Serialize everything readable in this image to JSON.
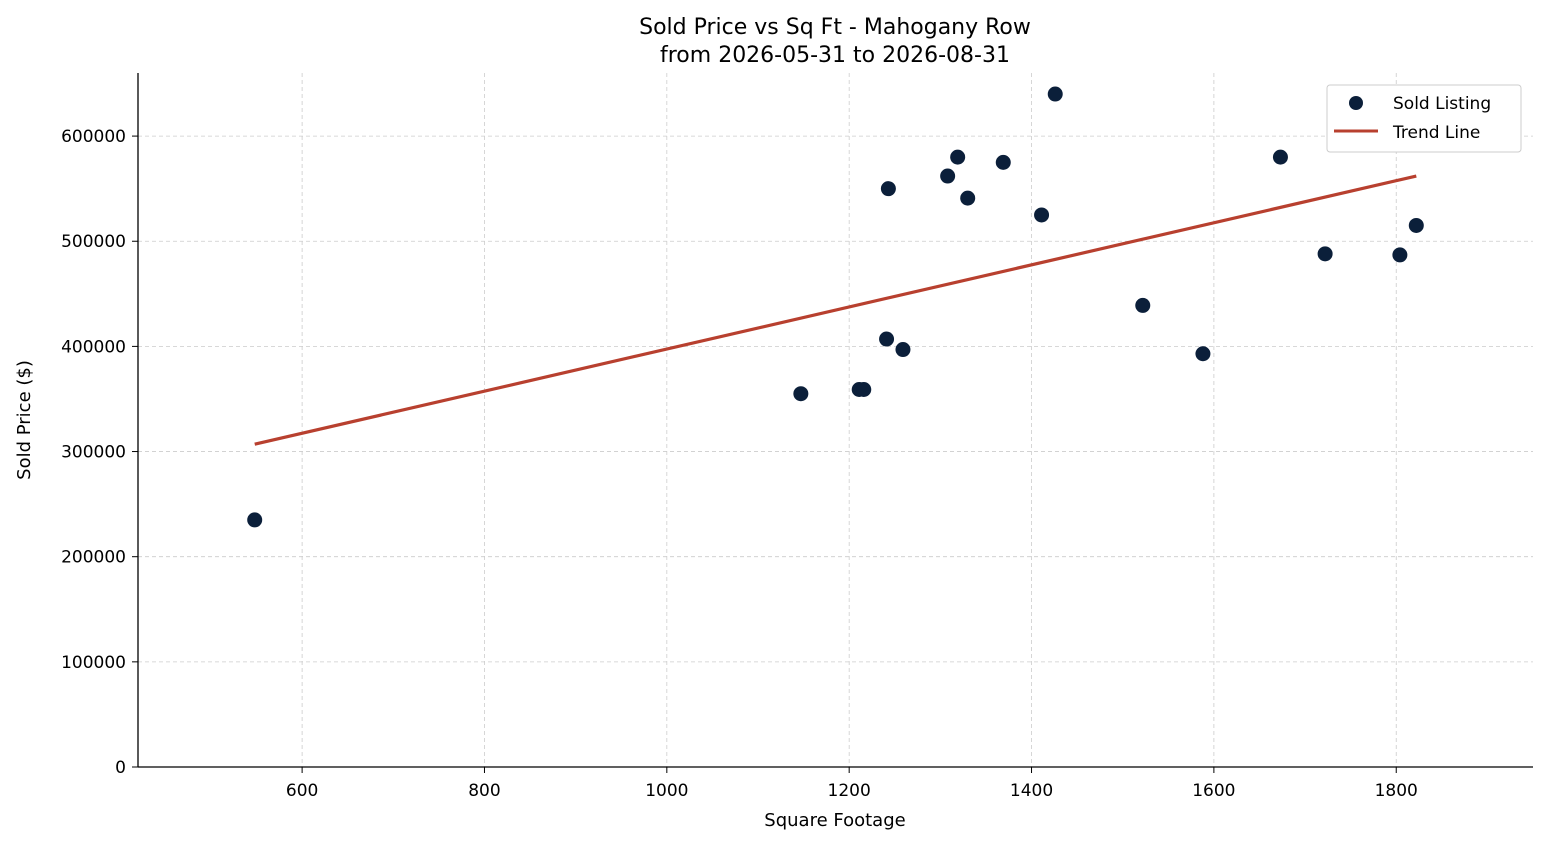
{
  "chart_data": {
    "type": "scatter",
    "title": "Sold Price vs Sq Ft - Mahogany Row",
    "subtitle": "from 2026-05-31 to 2026-08-31",
    "xlabel": "Square Footage",
    "ylabel": "Sold Price ($)",
    "xlim": [
      420,
      1950
    ],
    "ylim": [
      0,
      660000
    ],
    "x_ticks": [
      600,
      800,
      1000,
      1200,
      1400,
      1600,
      1800
    ],
    "y_ticks": [
      0,
      100000,
      200000,
      300000,
      400000,
      500000,
      600000
    ],
    "grid": true,
    "legend_position": "top-right",
    "series": [
      {
        "name": "Sold Listing",
        "kind": "scatter",
        "color": "#0b1f3a",
        "x": [
          548,
          1147,
          1211,
          1216,
          1241,
          1243,
          1259,
          1308,
          1319,
          1330,
          1369,
          1411,
          1426,
          1522,
          1588,
          1673,
          1722,
          1804,
          1822
        ],
        "y": [
          235000,
          355000,
          359000,
          359000,
          407000,
          550000,
          397000,
          562000,
          580000,
          541000,
          575000,
          525000,
          640000,
          439000,
          393000,
          580000,
          488000,
          487000,
          515000
        ]
      },
      {
        "name": "Trend Line",
        "kind": "line",
        "color": "#b8402f",
        "x": [
          548,
          1822
        ],
        "y": [
          307000,
          562000
        ]
      }
    ]
  }
}
